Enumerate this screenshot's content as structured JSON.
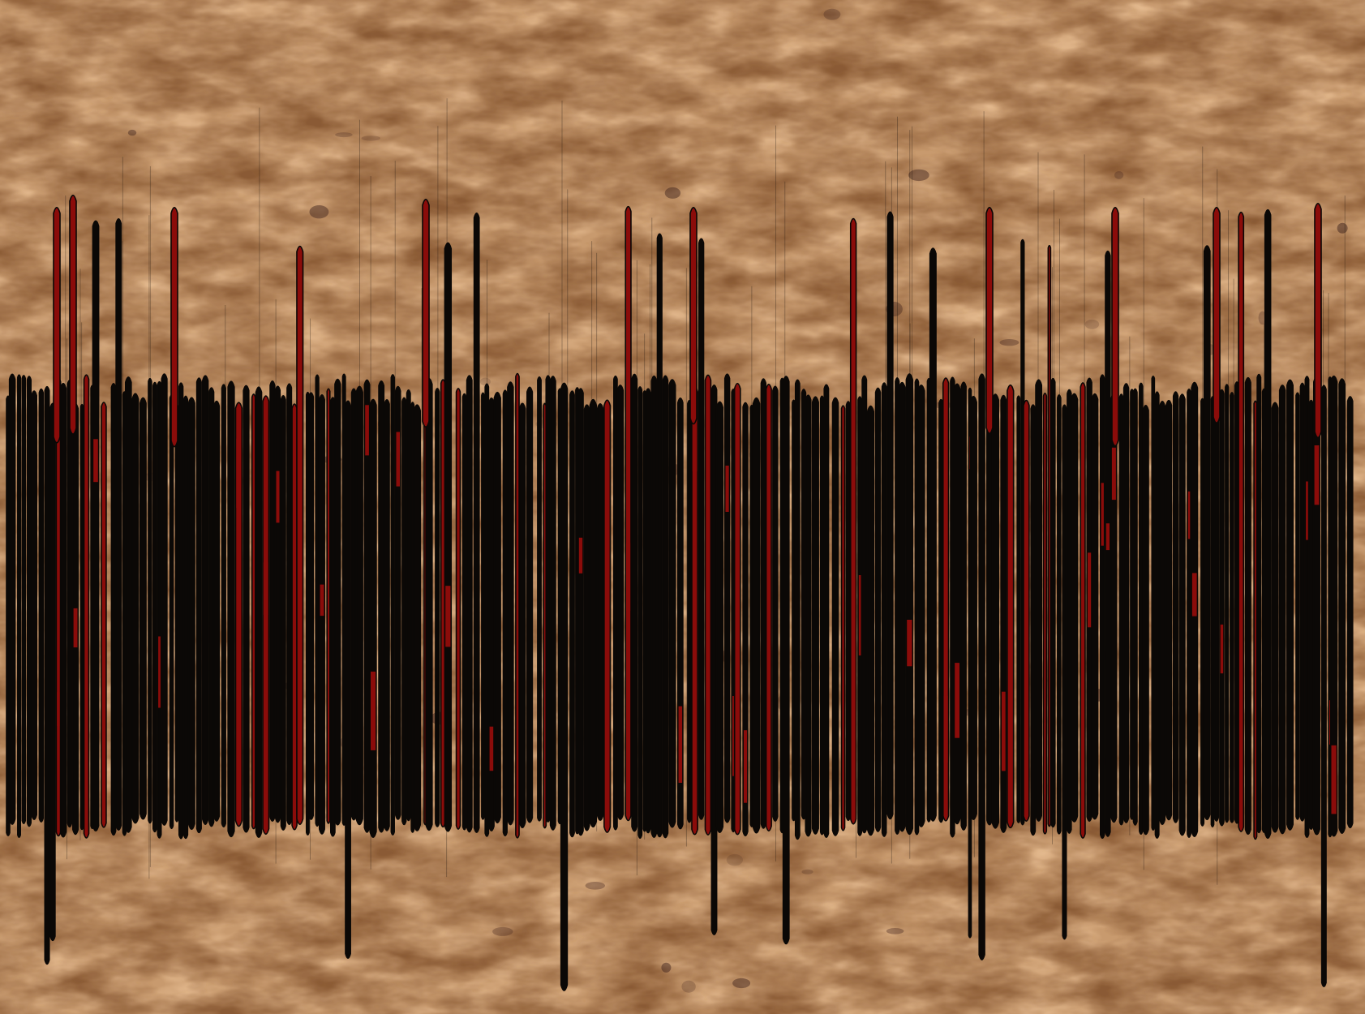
{
  "image": {
    "kind": "stretched calligraphic script on parchment texture",
    "colors": {
      "parchment_light": "#e7bd92",
      "parchment_mid": "#c89a6e",
      "parchment_dark": "#8a5a34",
      "speckle": "#3a1e1a",
      "ink": "#0b0806",
      "accent_fill": "#8b0c0a"
    }
  }
}
